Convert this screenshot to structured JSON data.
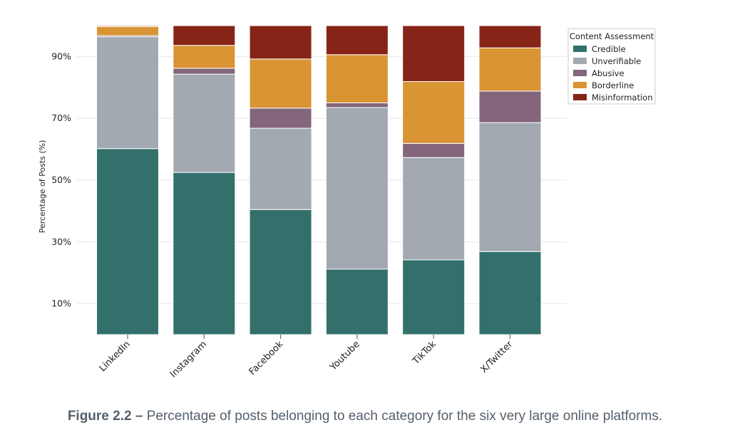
{
  "chart_data": {
    "type": "bar",
    "stacked": true,
    "title": "",
    "xlabel": "",
    "ylabel": "Percentage of Posts (%)",
    "ylim": [
      0,
      100
    ],
    "yticks": [
      10,
      30,
      50,
      70,
      90
    ],
    "ytick_labels": [
      "10%",
      "30%",
      "50%",
      "70%",
      "90%"
    ],
    "grid": true,
    "categories": [
      "LinkedIn",
      "Instagram",
      "Facebook",
      "Youtube",
      "TikTok",
      "X/Twitter"
    ],
    "legend_title": "Content Assessment",
    "legend_position": "top-right",
    "series": [
      {
        "name": "Credible",
        "color": "#33706c",
        "values": [
          60.2,
          52.5,
          40.5,
          21.2,
          24.2,
          26.9
        ]
      },
      {
        "name": "Unverifiable",
        "color": "#a2a9b0",
        "values": [
          36.2,
          31.8,
          26.3,
          52.3,
          33.1,
          41.7
        ]
      },
      {
        "name": "Abusive",
        "color": "#83667c",
        "values": [
          0.4,
          1.9,
          6.5,
          1.5,
          4.6,
          10.2
        ]
      },
      {
        "name": "Borderline",
        "color": "#d99434",
        "values": [
          2.9,
          7.4,
          15.9,
          15.6,
          20.0,
          14.0
        ]
      },
      {
        "name": "Misinformation",
        "color": "#862517",
        "values": [
          0.3,
          6.4,
          10.8,
          9.4,
          18.1,
          7.2
        ]
      }
    ]
  },
  "caption": {
    "label": "Figure 2.2 –",
    "text": " Percentage of posts belonging to each category for the six very large online platforms."
  }
}
